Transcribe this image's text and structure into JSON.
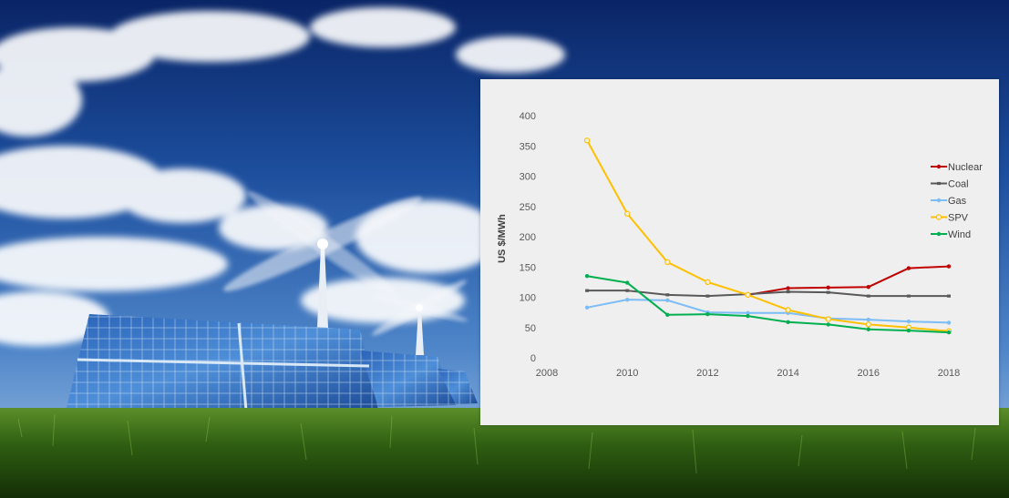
{
  "colors": {
    "sky_top": "#0d2a6e",
    "sky_mid": "#2e67b8",
    "sky_low": "#8fb3dc",
    "grass": "#2f5a14",
    "panel_bg": "#efefef",
    "axis_text": "#595959"
  },
  "chart_data": {
    "type": "line",
    "title": "",
    "xlabel": "",
    "ylabel": "US $/MWh",
    "xlim": [
      2008,
      2018
    ],
    "ylim": [
      0,
      400
    ],
    "x_ticks": [
      2008,
      2010,
      2012,
      2014,
      2016,
      2018
    ],
    "y_ticks": [
      0,
      50,
      100,
      150,
      200,
      250,
      300,
      350,
      400
    ],
    "x": [
      2009,
      2010,
      2011,
      2012,
      2013,
      2014,
      2015,
      2016,
      2017,
      2018
    ],
    "grid": false,
    "legend_position": "right",
    "series": [
      {
        "name": "Nuclear",
        "color": "#c00000",
        "marker": "dot",
        "values": [
          null,
          null,
          null,
          null,
          104,
          115,
          116,
          117,
          148,
          151
        ]
      },
      {
        "name": "Coal",
        "color": "#595959",
        "marker": "dash",
        "values": [
          111,
          111,
          104,
          102,
          105,
          109,
          108,
          102,
          102,
          102
        ]
      },
      {
        "name": "Gas",
        "color": "#7cbcf7",
        "marker": "dot",
        "values": [
          83,
          96,
          95,
          75,
          74,
          74,
          65,
          63,
          60,
          58
        ]
      },
      {
        "name": "SPV",
        "color": "#ffc000",
        "marker": "circle",
        "values": [
          359,
          238,
          158,
          125,
          104,
          79,
          64,
          55,
          50,
          44
        ]
      },
      {
        "name": "Wind",
        "color": "#00b050",
        "marker": "dot",
        "values": [
          135,
          124,
          71,
          72,
          69,
          59,
          55,
          47,
          45,
          42
        ]
      }
    ]
  }
}
